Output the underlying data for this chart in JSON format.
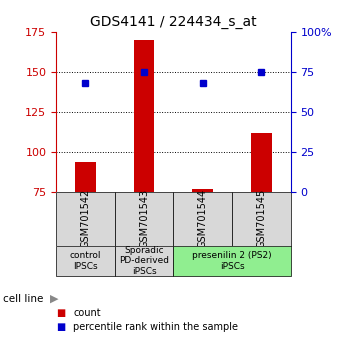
{
  "title": "GDS4141 / 224434_s_at",
  "samples": [
    "GSM701542",
    "GSM701543",
    "GSM701544",
    "GSM701545"
  ],
  "counts": [
    94,
    170,
    77,
    112
  ],
  "percentiles": [
    68,
    75,
    68,
    75
  ],
  "left_ylim": [
    75,
    175
  ],
  "right_ylim": [
    0,
    100
  ],
  "left_yticks": [
    75,
    100,
    125,
    150,
    175
  ],
  "right_yticks": [
    0,
    25,
    50,
    75,
    100
  ],
  "right_yticklabels": [
    "0",
    "25",
    "50",
    "75",
    "100%"
  ],
  "dotted_lines": [
    100,
    125,
    150
  ],
  "bar_color": "#cc0000",
  "dot_color": "#0000cc",
  "bar_width": 0.35,
  "groups": [
    {
      "label": "control\nIPSCs",
      "samples": [
        0
      ],
      "color": "#d8d8d8"
    },
    {
      "label": "Sporadic\nPD-derived\niPSCs",
      "samples": [
        1
      ],
      "color": "#d8d8d8"
    },
    {
      "label": "presenilin 2 (PS2)\niPSCs",
      "samples": [
        2,
        3
      ],
      "color": "#90ee90"
    }
  ],
  "cell_line_label": "cell line",
  "legend_count_label": "count",
  "legend_pct_label": "percentile rank within the sample",
  "title_fontsize": 10,
  "axis_label_color_left": "#cc0000",
  "axis_label_color_right": "#0000cc",
  "tick_label_fontsize": 8,
  "gsm_label_fontsize": 7,
  "group_label_fontsize": 6.5
}
